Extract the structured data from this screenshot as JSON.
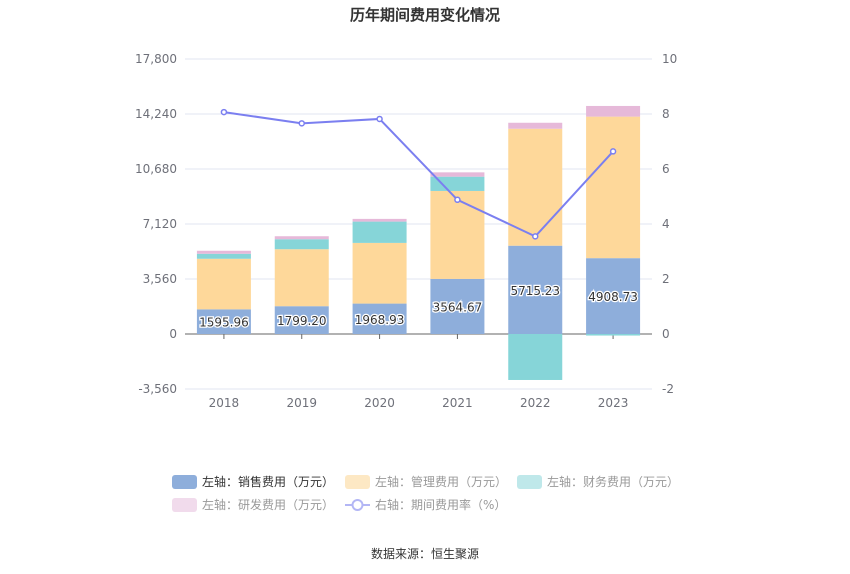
{
  "chart_data": {
    "type": "bar",
    "title": "历年期间费用变化情况",
    "categories": [
      "2018",
      "2019",
      "2020",
      "2021",
      "2022",
      "2023"
    ],
    "left_axis": {
      "ylim": [
        -3560,
        17800
      ],
      "ticks": [
        "-3,560",
        "0",
        "3,560",
        "7,120",
        "10,680",
        "14,240",
        "17,800"
      ],
      "tick_values": [
        -3560,
        0,
        3560,
        7120,
        10680,
        14240,
        17800
      ]
    },
    "right_axis": {
      "ylim": [
        -2,
        10
      ],
      "ticks": [
        "-2",
        "0",
        "2",
        "4",
        "6",
        "8",
        "10"
      ],
      "tick_values": [
        -2,
        0,
        2,
        4,
        6,
        8,
        10
      ]
    },
    "series": [
      {
        "name": "左轴：销售费用（万元）",
        "type": "bar",
        "color": "#8eaedb",
        "values": [
          1595.96,
          1799.2,
          1968.93,
          3564.67,
          5715.23,
          4908.73
        ],
        "labels": [
          "1595.96",
          "1799.20",
          "1968.93",
          "3564.67",
          "5715.23",
          "4908.73"
        ]
      },
      {
        "name": "左轴：管理费用（万元）",
        "type": "bar",
        "color": "#fed89a",
        "legend_color": "#fde8c4",
        "values": [
          3274,
          3688,
          3927,
          5694,
          7570,
          9162
        ]
      },
      {
        "name": "左轴：财务费用（万元）",
        "type": "bar",
        "color": "#86d5d8",
        "legend_color": "#bfe8ea",
        "values": [
          324,
          647,
          1380,
          925,
          -2976,
          -100
        ]
      },
      {
        "name": "左轴：研发费用（万元）",
        "type": "bar",
        "color": "#e6b9d9",
        "legend_color": "#f1dbec",
        "values": [
          194,
          194,
          175,
          280,
          388,
          690
        ]
      },
      {
        "name": "右轴：期间费用率（%）",
        "type": "line",
        "color": "#7b7ff0",
        "values": [
          8.07,
          7.66,
          7.82,
          4.88,
          3.55,
          6.64
        ]
      }
    ],
    "grid": true,
    "legend": "bottom"
  },
  "source": "数据来源：恒生聚源"
}
